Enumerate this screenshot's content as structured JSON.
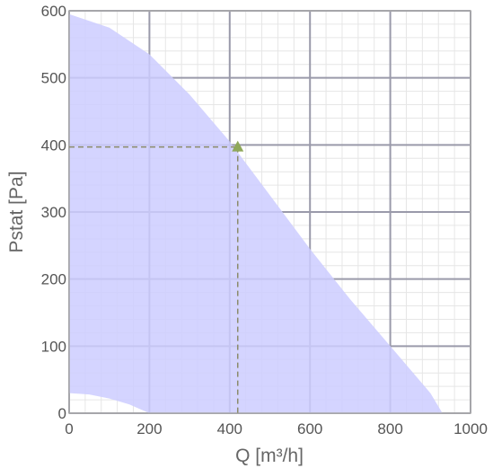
{
  "chart_data": {
    "type": "area",
    "title": "",
    "xlabel": "Q [m³/h]",
    "ylabel": "Pstat [Pa]",
    "xlim": [
      0,
      1000
    ],
    "ylim": [
      0,
      600
    ],
    "x_ticks": [
      "0",
      "200",
      "400",
      "600",
      "800",
      "1000"
    ],
    "y_ticks": [
      "0",
      "100",
      "200",
      "300",
      "400",
      "500",
      "600"
    ],
    "grid": true,
    "series": [
      {
        "role": "upper-boundary",
        "x": [
          0,
          100,
          200,
          300,
          400,
          500,
          600,
          700,
          800,
          900,
          930
        ],
        "y": [
          595,
          575,
          535,
          475,
          405,
          325,
          245,
          170,
          100,
          30,
          0
        ]
      },
      {
        "role": "lower-boundary",
        "x": [
          0,
          50,
          100,
          150,
          200
        ],
        "y": [
          30,
          28,
          22,
          13,
          0
        ]
      }
    ],
    "operating_point": {
      "x": 420,
      "y": 397
    },
    "colors": {
      "area": "#ccccff",
      "marker": "#8fa85a",
      "guide": "#8b8b6a",
      "major_grid": "#9a9aaa",
      "minor_grid": "#e6e6e6",
      "frame": "#aaaaaa"
    }
  }
}
